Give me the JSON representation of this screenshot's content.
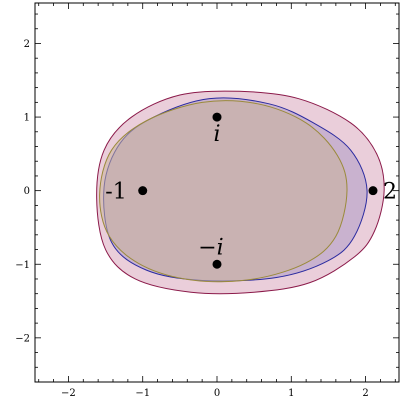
{
  "chart_data": {
    "type": "scatter",
    "title": "",
    "xlabel": "",
    "ylabel": "",
    "xlim": [
      -2.45,
      2.45
    ],
    "ylim": [
      -2.6,
      2.55
    ],
    "grid": false,
    "x_ticks": [
      -2,
      -1,
      0,
      1,
      2
    ],
    "y_ticks": [
      -2,
      -1,
      0,
      1,
      2
    ],
    "x_tick_labels": [
      "−2",
      "−1",
      "0",
      "1",
      "2"
    ],
    "y_tick_labels": [
      "−2",
      "−1",
      "0",
      "1",
      "2"
    ],
    "points": [
      {
        "x": -1,
        "y": 0,
        "label": "-1"
      },
      {
        "x": 2.1,
        "y": 0,
        "label": "2"
      },
      {
        "x": 0,
        "y": 1,
        "label": "i"
      },
      {
        "x": 0,
        "y": -1,
        "label": "−i"
      }
    ],
    "regions": [
      {
        "color": "#8b1a4a",
        "fill": "#e8c9d6",
        "opacity": 0.9,
        "boundary": [
          [
            2.25,
            0
          ],
          [
            2.12,
            -0.55
          ],
          [
            1.85,
            -0.9
          ],
          [
            1.25,
            -1.25
          ],
          [
            0.5,
            -1.38
          ],
          [
            -0.35,
            -1.38
          ],
          [
            -1.1,
            -1.2
          ],
          [
            -1.5,
            -0.8
          ],
          [
            -1.62,
            -0.1
          ],
          [
            -1.52,
            0.55
          ],
          [
            -1.15,
            1.0
          ],
          [
            -0.5,
            1.3
          ],
          [
            0.3,
            1.35
          ],
          [
            1.1,
            1.25
          ],
          [
            1.8,
            0.92
          ],
          [
            2.15,
            0.5
          ]
        ]
      },
      {
        "color": "#2b2ba0",
        "fill": "#b7a3c9",
        "opacity": 0.65,
        "boundary": [
          [
            2.02,
            0
          ],
          [
            1.85,
            -0.62
          ],
          [
            1.5,
            -0.95
          ],
          [
            0.8,
            -1.18
          ],
          [
            -0.2,
            -1.22
          ],
          [
            -0.95,
            -1.08
          ],
          [
            -1.42,
            -0.7
          ],
          [
            -1.52,
            0.05
          ],
          [
            -1.3,
            0.65
          ],
          [
            -0.85,
            1.0
          ],
          [
            -0.1,
            1.25
          ],
          [
            0.7,
            1.18
          ],
          [
            1.3,
            0.92
          ],
          [
            1.8,
            0.55
          ]
        ]
      },
      {
        "color": "#9a8a3a",
        "fill": "#c9b39a",
        "opacity": 0.55,
        "boundary": [
          [
            1.75,
            0
          ],
          [
            1.6,
            -0.62
          ],
          [
            1.2,
            -0.98
          ],
          [
            0.5,
            -1.2
          ],
          [
            -0.3,
            -1.22
          ],
          [
            -1.0,
            -1.02
          ],
          [
            -1.45,
            -0.62
          ],
          [
            -1.58,
            -0.05
          ],
          [
            -1.42,
            0.55
          ],
          [
            -0.95,
            0.95
          ],
          [
            -0.2,
            1.2
          ],
          [
            0.55,
            1.18
          ],
          [
            1.2,
            0.92
          ],
          [
            1.62,
            0.48
          ]
        ]
      }
    ]
  }
}
